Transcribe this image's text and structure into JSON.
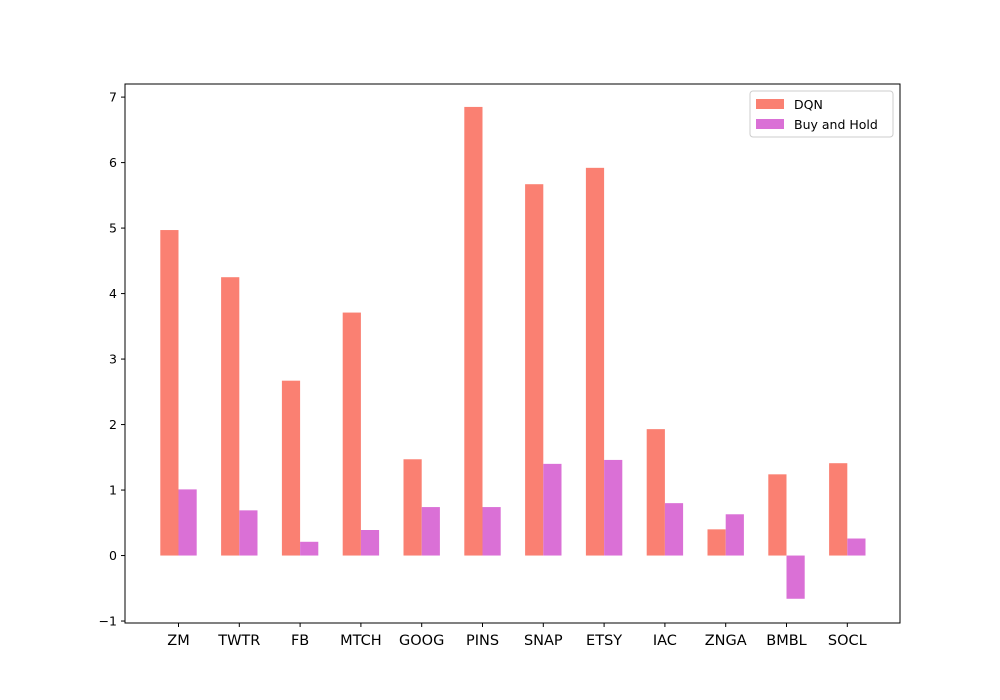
{
  "chart_data": {
    "type": "bar",
    "categories": [
      "ZM",
      "TWTR",
      "FB",
      "MTCH",
      "GOOG",
      "PINS",
      "SNAP",
      "ETSY",
      "IAC",
      "ZNGA",
      "BMBL",
      "SOCL"
    ],
    "series": [
      {
        "name": "DQN",
        "color": "#fa8072",
        "values": [
          4.97,
          4.25,
          2.67,
          3.71,
          1.47,
          6.85,
          5.67,
          5.92,
          1.93,
          0.4,
          1.24,
          1.41
        ]
      },
      {
        "name": "Buy and Hold",
        "color": "#da70d6",
        "values": [
          1.01,
          0.69,
          0.21,
          0.39,
          0.74,
          0.74,
          1.4,
          1.46,
          0.8,
          0.63,
          -0.66,
          0.26
        ]
      }
    ],
    "yticks": [
      -1,
      0,
      1,
      2,
      3,
      4,
      5,
      6,
      7
    ],
    "ylim": [
      -1.03,
      7.2
    ],
    "grid": false,
    "legend_position": "top-right"
  }
}
